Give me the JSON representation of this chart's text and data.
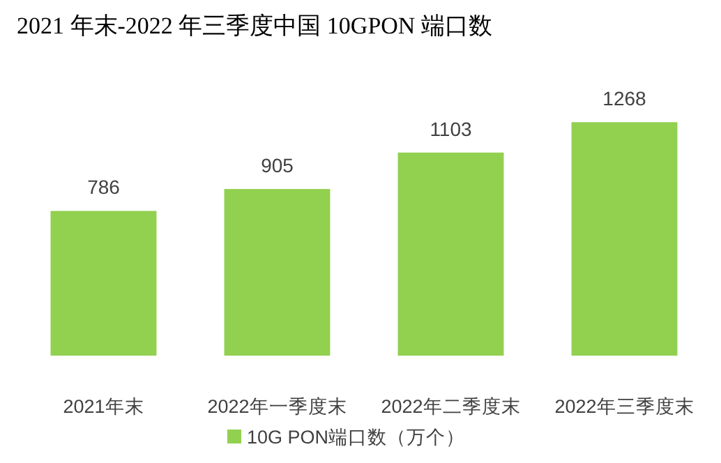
{
  "chart_data": {
    "type": "bar",
    "title": "2021 年末-2022 年三季度中国 10GPON 端口数",
    "categories": [
      "2021年末",
      "2022年一季度末",
      "2022年二季度末",
      "2022年三季度末"
    ],
    "series": [
      {
        "name": "10G PON端口数（万个）",
        "color": "#92d050",
        "values": [
          786,
          905,
          1103,
          1268
        ]
      }
    ],
    "data_labels": true,
    "legend": "bottom"
  }
}
